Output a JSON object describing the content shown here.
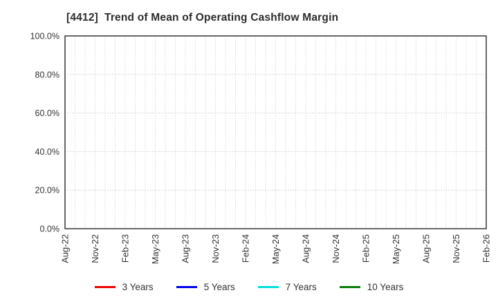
{
  "window": {
    "background": "#ffffff"
  },
  "chart": {
    "title": "[4412]  Trend of Mean of Operating Cashflow Margin",
    "title_color": "#2b2b2b",
    "axis_label_color": "#333333",
    "border_color": "#262626",
    "vgrid_color": "#c6c6c6",
    "hgrid_color": "#b5b5b5"
  },
  "chart_data": {
    "type": "line",
    "title": "[4412]  Trend of Mean of Operating Cashflow Margin",
    "x_tick_labels": [
      "Aug-22",
      "Nov-22",
      "Feb-23",
      "May-23",
      "Aug-23",
      "Nov-23",
      "Feb-24",
      "May-24",
      "Aug-24",
      "Nov-24",
      "Feb-25",
      "May-25",
      "Aug-25",
      "Nov-25",
      "Feb-26"
    ],
    "months_per_labeled_tick": 3,
    "minor_vgrid": "monthly",
    "y_ticks": [
      0,
      20,
      40,
      60,
      80,
      100
    ],
    "y_tick_labels": [
      "0.0%",
      "20.0%",
      "40.0%",
      "60.0%",
      "80.0%",
      "100.0%"
    ],
    "ylim": [
      0,
      100
    ],
    "grid": true,
    "grid_style": "dotted",
    "legend_position": "bottom-center",
    "series": [
      {
        "name": "3 Years",
        "color": "#ee0000",
        "values": []
      },
      {
        "name": "5 Years",
        "color": "#0000ee",
        "values": []
      },
      {
        "name": "7 Years",
        "color": "#00e0e0",
        "values": []
      },
      {
        "name": "10 Years",
        "color": "#0a7d0a",
        "values": []
      }
    ]
  }
}
